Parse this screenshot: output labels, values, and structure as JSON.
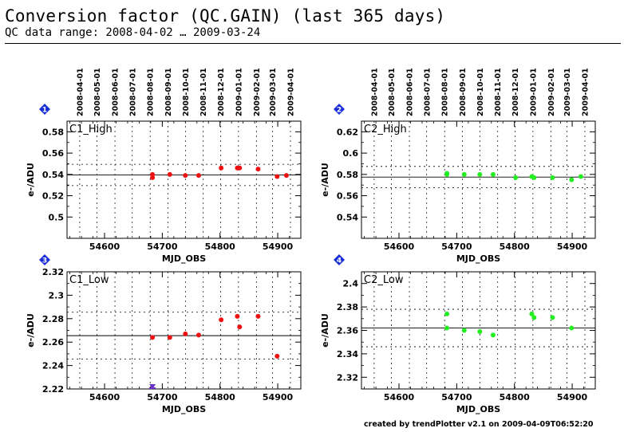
{
  "header": {
    "title": "Conversion factor (QC.GAIN) (last 365 days)",
    "subtitle": "QC data range: 2008-04-02 … 2009-03-24"
  },
  "footer": {
    "credit": "created by trendPlotter v2.1 on 2009-04-09T06:52:20"
  },
  "colors": {
    "c1_marker": "#ee1111",
    "c2_marker": "#22ee22",
    "badge": "#1a2fd8",
    "flag": "#6a2fc9",
    "axis": "#000000"
  },
  "date_ticks": {
    "labels": [
      "2008-04-01",
      "2008-05-01",
      "2008-06-01",
      "2008-07-01",
      "2008-08-01",
      "2008-09-01",
      "2008-10-01",
      "2008-11-01",
      "2008-12-01",
      "2009-01-01",
      "2009-02-01",
      "2009-03-01",
      "2009-04-01"
    ],
    "mjd": [
      54557,
      54587,
      54618,
      54648,
      54679,
      54710,
      54740,
      54771,
      54801,
      54832,
      54863,
      54891,
      54922
    ]
  },
  "chart_data": [
    {
      "type": "scatter",
      "badge": "1",
      "label": "C1_High",
      "xlabel": "MJD_OBS",
      "ylabel": "e-/ADU",
      "xlim": [
        54535,
        54940
      ],
      "xticks": [
        54600,
        54700,
        54800,
        54900
      ],
      "xtick_labels": [
        "54600",
        "54700",
        "54800",
        "54900"
      ],
      "ylim": [
        0.48,
        0.59
      ],
      "yticks": [
        0.5,
        0.52,
        0.54,
        0.56,
        0.58
      ],
      "ytick_labels": [
        "0.5",
        "0.52",
        "0.54",
        "0.56",
        "0.58"
      ],
      "ref_line": 0.5395,
      "dotted_lines": [
        0.5495,
        0.5295
      ],
      "show_top_axis": true,
      "marker_color": "#ee1111",
      "points": [
        [
          54683,
          0.54
        ],
        [
          54683,
          0.537
        ],
        [
          54713,
          0.54
        ],
        [
          54740,
          0.539
        ],
        [
          54763,
          0.539
        ],
        [
          54802,
          0.546
        ],
        [
          54830,
          0.546
        ],
        [
          54834,
          0.546
        ],
        [
          54866,
          0.545
        ],
        [
          54899,
          0.538
        ],
        [
          54915,
          0.539
        ]
      ],
      "flags": []
    },
    {
      "type": "scatter",
      "badge": "2",
      "label": "C2_High",
      "xlabel": "MJD_OBS",
      "ylabel": "e-/ADU",
      "xlim": [
        54535,
        54940
      ],
      "xticks": [
        54600,
        54700,
        54800,
        54900
      ],
      "xtick_labels": [
        "54600",
        "54700",
        "54800",
        "54900"
      ],
      "ylim": [
        0.52,
        0.63
      ],
      "yticks": [
        0.54,
        0.56,
        0.58,
        0.6,
        0.62
      ],
      "ytick_labels": [
        "0.54",
        "0.56",
        "0.58",
        "0.6",
        "0.62"
      ],
      "ref_line": 0.5775,
      "dotted_lines": [
        0.5875,
        0.5675
      ],
      "show_top_axis": true,
      "marker_color": "#22ee22",
      "points": [
        [
          54683,
          0.581
        ],
        [
          54683,
          0.58
        ],
        [
          54713,
          0.58
        ],
        [
          54740,
          0.58
        ],
        [
          54763,
          0.58
        ],
        [
          54802,
          0.577
        ],
        [
          54830,
          0.578
        ],
        [
          54834,
          0.577
        ],
        [
          54866,
          0.577
        ],
        [
          54899,
          0.575
        ],
        [
          54915,
          0.578
        ]
      ],
      "flags": []
    },
    {
      "type": "scatter",
      "badge": "3",
      "label": "C1_Low",
      "xlabel": "MJD_OBS",
      "ylabel": "e-/ADU",
      "xlim": [
        54535,
        54940
      ],
      "xticks": [
        54600,
        54700,
        54800,
        54900
      ],
      "xtick_labels": [
        "54600",
        "54700",
        "54800",
        "54900"
      ],
      "ylim": [
        2.22,
        2.32
      ],
      "yticks": [
        2.22,
        2.24,
        2.26,
        2.28,
        2.3,
        2.32
      ],
      "ytick_labels": [
        "2.22",
        "2.24",
        "2.26",
        "2.28",
        "2.3",
        "2.32"
      ],
      "ref_line": 2.2655,
      "dotted_lines": [
        2.2855,
        2.2455
      ],
      "show_top_axis": false,
      "marker_color": "#ee1111",
      "points": [
        [
          54683,
          2.264
        ],
        [
          54713,
          2.264
        ],
        [
          54740,
          2.267
        ],
        [
          54763,
          2.266
        ],
        [
          54802,
          2.279
        ],
        [
          54830,
          2.282
        ],
        [
          54834,
          2.273
        ],
        [
          54866,
          2.282
        ],
        [
          54899,
          2.248
        ]
      ],
      "flags": [
        54683
      ]
    },
    {
      "type": "scatter",
      "badge": "4",
      "label": "C2_Low",
      "xlabel": "MJD_OBS",
      "ylabel": "e-/ADU",
      "xlim": [
        54535,
        54940
      ],
      "xticks": [
        54600,
        54700,
        54800,
        54900
      ],
      "xtick_labels": [
        "54600",
        "54700",
        "54800",
        "54900"
      ],
      "ylim": [
        2.31,
        2.41
      ],
      "yticks": [
        2.32,
        2.34,
        2.36,
        2.38,
        2.4
      ],
      "ytick_labels": [
        "2.32",
        "2.34",
        "2.36",
        "2.38",
        "2.4"
      ],
      "ref_line": 2.362,
      "dotted_lines": [
        2.378,
        2.346
      ],
      "show_top_axis": false,
      "marker_color": "#22ee22",
      "points": [
        [
          54683,
          2.374
        ],
        [
          54683,
          2.362
        ],
        [
          54713,
          2.36
        ],
        [
          54740,
          2.359
        ],
        [
          54763,
          2.356
        ],
        [
          54830,
          2.374
        ],
        [
          54834,
          2.371
        ],
        [
          54866,
          2.371
        ],
        [
          54899,
          2.362
        ]
      ],
      "flags": []
    }
  ]
}
